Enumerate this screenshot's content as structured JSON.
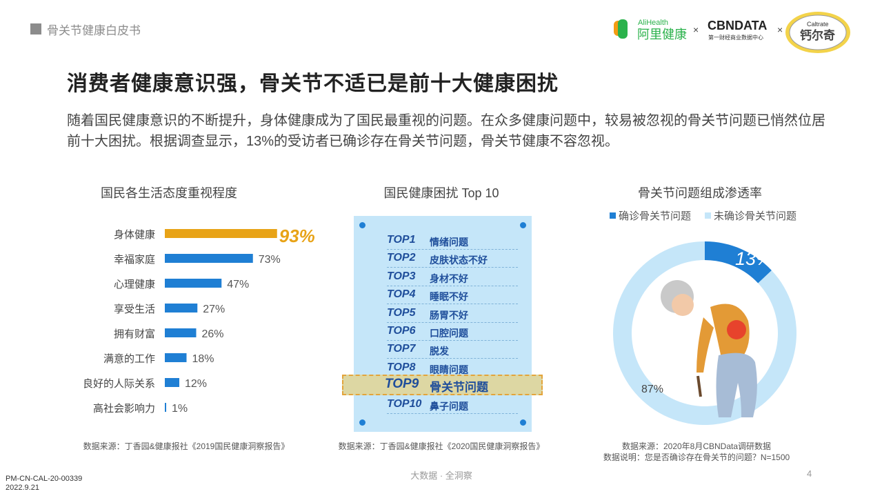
{
  "header": {
    "label": "骨关节健康白皮书"
  },
  "logos": {
    "alihealth_en": "AliHealth",
    "alihealth_cn": "阿里健康",
    "cbndata": "CBNDATA",
    "cbndata_sub": "第一财经商业数据中心",
    "caltrate_en": "Caltrate",
    "caltrate_cn": "钙尔奇",
    "times": "×"
  },
  "title": "消费者健康意识强，骨关节不适已是前十大健康困扰",
  "intro": "随着国民健康意识的不断提升，身体健康成为了国民最重视的问题。在众多健康问题中，较易被忽视的骨关节问题已悄然位居前十大困扰。根据调查显示，13%的受访者已确诊存在骨关节问题，骨关节健康不容忽视。",
  "chart_data": [
    {
      "type": "bar",
      "orientation": "horizontal",
      "title": "国民各生活态度重视程度",
      "categories": [
        "身体健康",
        "幸福家庭",
        "心理健康",
        "享受生活",
        "拥有财富",
        "满意的工作",
        "良好的人际关系",
        "高社会影响力"
      ],
      "values": [
        93,
        73,
        47,
        27,
        26,
        18,
        12,
        1
      ],
      "value_labels": [
        "93%",
        "73%",
        "47%",
        "27%",
        "26%",
        "18%",
        "12%",
        "1%"
      ],
      "colors": {
        "highlight": "#e8a317",
        "default": "#1f7fd4"
      },
      "xlim": [
        0,
        100
      ],
      "source": "数据来源：丁香园&健康报社《2019国民健康洞察报告》"
    },
    {
      "type": "table",
      "title": "国民健康困扰 Top 10",
      "ranks": [
        "TOP1",
        "TOP2",
        "TOP3",
        "TOP4",
        "TOP5",
        "TOP6",
        "TOP7",
        "TOP8",
        "TOP9",
        "TOP10"
      ],
      "items": [
        "情绪问题",
        "皮肤状态不好",
        "身材不好",
        "睡眠不好",
        "肠胃不好",
        "口腔问题",
        "脱发",
        "眼睛问题",
        "骨关节问题",
        "鼻子问题"
      ],
      "highlight_rank": "TOP9",
      "source": "数据来源：丁香园&健康报社《2020国民健康洞察报告》"
    },
    {
      "type": "pie",
      "donut": true,
      "title": "骨关节问题组成渗透率",
      "labels": [
        "确诊骨关节问题",
        "未确诊骨关节问题"
      ],
      "values": [
        13,
        87
      ],
      "value_labels": [
        "13%",
        "87%"
      ],
      "colors": [
        "#1f7fd4",
        "#c5e6f9"
      ],
      "legend": "top",
      "source": "数据来源：2020年8月CBNData调研数据",
      "note": "数据说明：您是否确诊存在骨关节的问题？N=1500"
    }
  ],
  "footer": {
    "center": "大数据 · 全洞察",
    "page": "4",
    "code": "PM-CN-CAL-20-00339",
    "date": "2022.9.21"
  }
}
